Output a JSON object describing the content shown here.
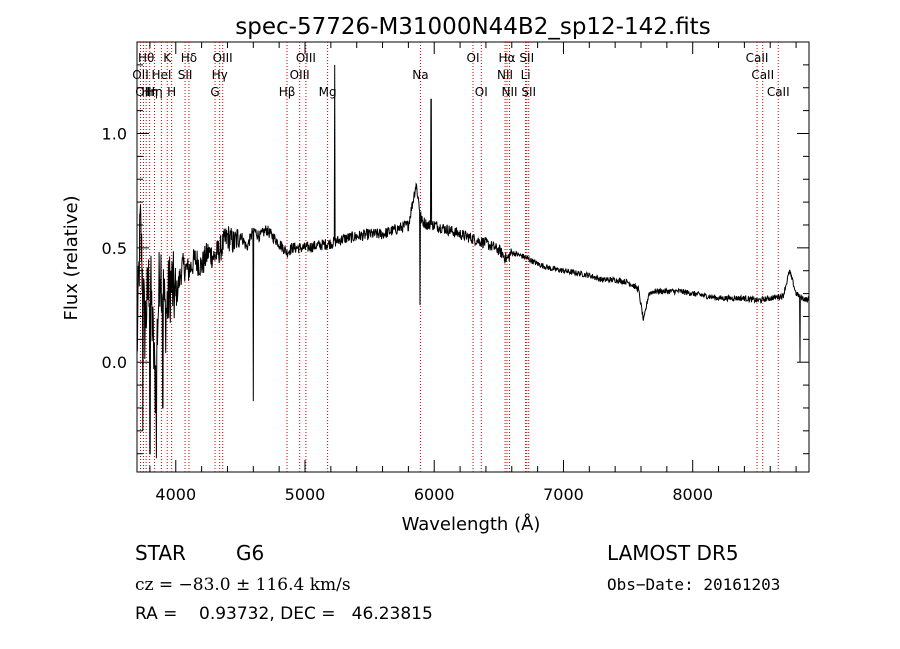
{
  "chart_data": {
    "type": "line",
    "title": "spec-57726-M31000N44B2_sp12-142.fits",
    "xlabel": "Wavelength (Å)",
    "ylabel": "Flux (relative)",
    "xlim": [
      3700,
      8900
    ],
    "ylim": [
      -0.48,
      1.4
    ],
    "x_ticks": [
      4000,
      5000,
      6000,
      7000,
      8000
    ],
    "y_ticks": [
      0.0,
      0.5,
      1.0
    ],
    "x_tick_labels": [
      "4000",
      "5000",
      "6000",
      "7000",
      "8000"
    ],
    "y_tick_labels": [
      "0.0",
      "0.5",
      "1.0"
    ],
    "grid": false,
    "series": [
      {
        "color": "#000000",
        "anchors": [
          [
            3700,
            0.05
          ],
          [
            3725,
            0.6
          ],
          [
            3760,
            0.15
          ],
          [
            3800,
            0.4
          ],
          [
            3840,
            -0.1
          ],
          [
            3880,
            0.45
          ],
          [
            3920,
            0.2
          ],
          [
            3960,
            0.35
          ],
          [
            4000,
            0.28
          ],
          [
            4050,
            0.42
          ],
          [
            4100,
            0.4
          ],
          [
            4150,
            0.45
          ],
          [
            4200,
            0.42
          ],
          [
            4250,
            0.48
          ],
          [
            4300,
            0.46
          ],
          [
            4350,
            0.5
          ],
          [
            4400,
            0.55
          ],
          [
            4450,
            0.52
          ],
          [
            4500,
            0.56
          ],
          [
            4550,
            0.5
          ],
          [
            4600,
            0.58
          ],
          [
            4650,
            0.55
          ],
          [
            4700,
            0.58
          ],
          [
            4800,
            0.52
          ],
          [
            4861,
            0.48
          ],
          [
            4900,
            0.5
          ],
          [
            5000,
            0.5
          ],
          [
            5100,
            0.51
          ],
          [
            5200,
            0.52
          ],
          [
            5300,
            0.54
          ],
          [
            5400,
            0.55
          ],
          [
            5500,
            0.56
          ],
          [
            5600,
            0.56
          ],
          [
            5700,
            0.58
          ],
          [
            5800,
            0.6
          ],
          [
            5860,
            0.78
          ],
          [
            5900,
            0.62
          ],
          [
            5950,
            0.6
          ],
          [
            6000,
            0.6
          ],
          [
            6100,
            0.58
          ],
          [
            6200,
            0.56
          ],
          [
            6300,
            0.54
          ],
          [
            6400,
            0.52
          ],
          [
            6500,
            0.49
          ],
          [
            6563,
            0.45
          ],
          [
            6600,
            0.48
          ],
          [
            6700,
            0.46
          ],
          [
            6800,
            0.43
          ],
          [
            6900,
            0.41
          ],
          [
            7000,
            0.4
          ],
          [
            7100,
            0.39
          ],
          [
            7200,
            0.38
          ],
          [
            7300,
            0.36
          ],
          [
            7400,
            0.36
          ],
          [
            7500,
            0.35
          ],
          [
            7580,
            0.32
          ],
          [
            7620,
            0.18
          ],
          [
            7660,
            0.3
          ],
          [
            7700,
            0.31
          ],
          [
            7800,
            0.31
          ],
          [
            7900,
            0.31
          ],
          [
            8000,
            0.3
          ],
          [
            8100,
            0.29
          ],
          [
            8200,
            0.28
          ],
          [
            8300,
            0.28
          ],
          [
            8400,
            0.28
          ],
          [
            8500,
            0.27
          ],
          [
            8600,
            0.28
          ],
          [
            8700,
            0.29
          ],
          [
            8750,
            0.4
          ],
          [
            8800,
            0.3
          ],
          [
            8850,
            0.28
          ],
          [
            8900,
            0.27
          ]
        ],
        "features": [
          [
            4600,
            -0.17
          ],
          [
            5230,
            1.3
          ],
          [
            5890,
            0.25
          ],
          [
            5975,
            1.15
          ],
          [
            5990,
            0.58
          ],
          [
            8830,
            0.0
          ],
          [
            3745,
            -0.3
          ],
          [
            3800,
            -0.4
          ],
          [
            3850,
            -0.42
          ],
          [
            3900,
            -0.2
          ]
        ]
      }
    ],
    "lines": [
      {
        "x": 3727,
        "label": "OII",
        "row": 2
      },
      {
        "x": 3750,
        "label": "OII",
        "row": 3
      },
      {
        "x": 3771,
        "label": "Hθ",
        "row": 1
      },
      {
        "x": 3798,
        "label": "Hη",
        "row": 3
      },
      {
        "x": 3835,
        "label": "Hη",
        "row": 3
      },
      {
        "x": 3889,
        "label": "HeI",
        "row": 2
      },
      {
        "x": 3934,
        "label": "K",
        "row": 1
      },
      {
        "x": 3968,
        "label": "H",
        "row": 3
      },
      {
        "x": 4102,
        "label": "Hδ",
        "row": 1
      },
      {
        "x": 4072,
        "label": "SII",
        "row": 2
      },
      {
        "x": 4304,
        "label": "G",
        "row": 3
      },
      {
        "x": 4340,
        "label": "Hγ",
        "row": 2
      },
      {
        "x": 4363,
        "label": "OIII",
        "row": 1
      },
      {
        "x": 4861,
        "label": "Hβ",
        "row": 3
      },
      {
        "x": 4959,
        "label": "OIII",
        "row": 2
      },
      {
        "x": 5007,
        "label": "OIII",
        "row": 1
      },
      {
        "x": 5175,
        "label": "Mg",
        "row": 3
      },
      {
        "x": 5893,
        "label": "Na",
        "row": 2
      },
      {
        "x": 6300,
        "label": "OI",
        "row": 1
      },
      {
        "x": 6364,
        "label": "OI",
        "row": 3
      },
      {
        "x": 6548,
        "label": "NII",
        "row": 2
      },
      {
        "x": 6563,
        "label": "Hα",
        "row": 1
      },
      {
        "x": 6583,
        "label": "NII",
        "row": 3
      },
      {
        "x": 6707,
        "label": "Li",
        "row": 2
      },
      {
        "x": 6716,
        "label": "SII",
        "row": 1
      },
      {
        "x": 6731,
        "label": "SII",
        "row": 3
      },
      {
        "x": 8498,
        "label": "CaII",
        "row": 1
      },
      {
        "x": 8542,
        "label": "CaII",
        "row": 2
      },
      {
        "x": 8662,
        "label": "CaII",
        "row": 3
      }
    ]
  },
  "info": {
    "class": "STAR",
    "subclass": "G6",
    "survey": "LAMOST DR5",
    "cz": "cz = −83.0 ± 116.4 km/s",
    "obs_date": "Obs−Date: 20161203",
    "radec": "RA =    0.93732, DEC =   46.23815"
  }
}
